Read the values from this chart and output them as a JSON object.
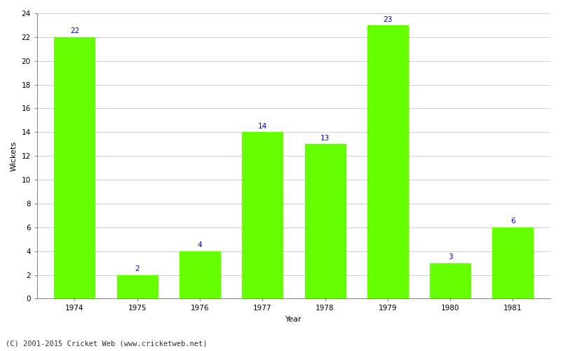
{
  "categories": [
    "1974",
    "1975",
    "1976",
    "1977",
    "1978",
    "1979",
    "1980",
    "1981"
  ],
  "values": [
    22,
    2,
    4,
    14,
    13,
    23,
    3,
    6
  ],
  "bar_color": "#66ff00",
  "label_color": "#0000cc",
  "xlabel": "Year",
  "ylabel": "Wickets",
  "ylim": [
    0,
    24
  ],
  "yticks": [
    0,
    2,
    4,
    6,
    8,
    10,
    12,
    14,
    16,
    18,
    20,
    22,
    24
  ],
  "grid_color": "#cccccc",
  "background_color": "#ffffff",
  "footer": "(C) 2001-2015 Cricket Web (www.cricketweb.net)",
  "label_fontsize": 7.5,
  "axis_label_fontsize": 8,
  "tick_fontsize": 7.5,
  "footer_fontsize": 7.5,
  "bar_width": 0.65
}
